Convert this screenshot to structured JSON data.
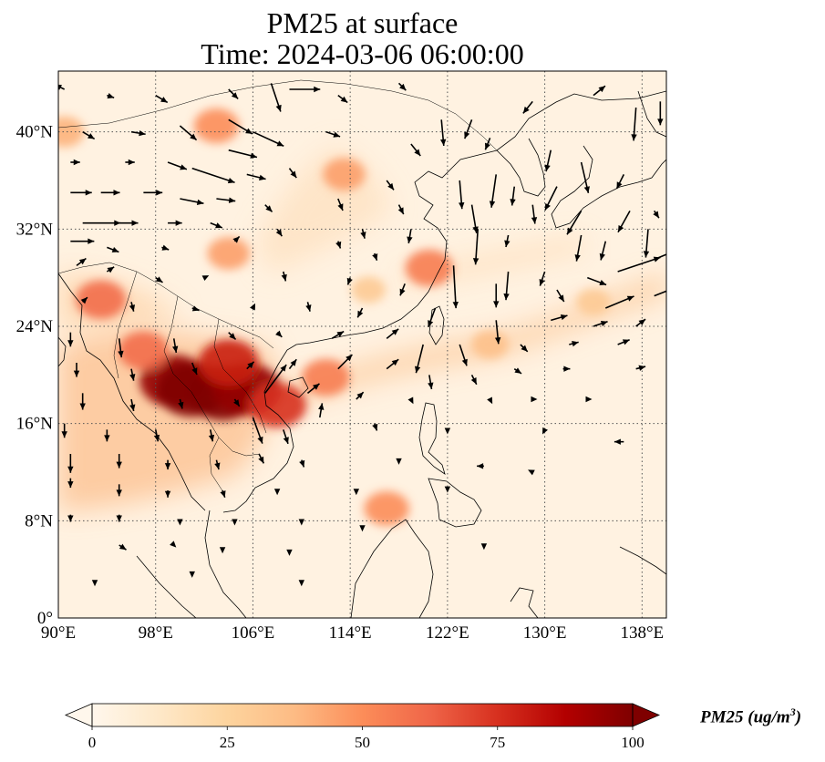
{
  "title_line1": "PM25 at surface",
  "title_line2": "Time: 2024-03-06 06:00:00",
  "map": {
    "lon_range": [
      90,
      140
    ],
    "lat_range": [
      0,
      45
    ],
    "lon_ticks": [
      {
        "v": 90,
        "label": "90°E"
      },
      {
        "v": 98,
        "label": "98°E"
      },
      {
        "v": 106,
        "label": "106°E"
      },
      {
        "v": 114,
        "label": "114°E"
      },
      {
        "v": 122,
        "label": "122°E"
      },
      {
        "v": 130,
        "label": "130°E"
      },
      {
        "v": 138,
        "label": "138°E"
      }
    ],
    "lat_ticks": [
      {
        "v": 0,
        "label": "0°"
      },
      {
        "v": 8,
        "label": "8°N"
      },
      {
        "v": 16,
        "label": "16°N"
      },
      {
        "v": 24,
        "label": "24°N"
      },
      {
        "v": 32,
        "label": "32°N"
      },
      {
        "v": 40,
        "label": "40°N"
      }
    ],
    "gridlines": "dotted"
  },
  "colorbar": {
    "label": "PM25 (ug/m",
    "label_sup": "3",
    "label_close": ")",
    "colormap": "OrRd",
    "range": [
      0,
      100
    ],
    "extend": "both",
    "ticks": [
      {
        "v": 0,
        "label": "0"
      },
      {
        "v": 25,
        "label": "25"
      },
      {
        "v": 50,
        "label": "50"
      },
      {
        "v": 75,
        "label": "75"
      },
      {
        "v": 100,
        "label": "100"
      }
    ],
    "colors": [
      "#fff7ec",
      "#fee8c8",
      "#fdd49e",
      "#fdbb84",
      "#fc8d59",
      "#ef6548",
      "#d7301f",
      "#b30000",
      "#7f0000"
    ]
  },
  "pollution_hotspots": [
    {
      "lon": 99.5,
      "lat": 19.5,
      "value": 95
    },
    {
      "lon": 101,
      "lat": 18.8,
      "value": 100
    },
    {
      "lon": 103.5,
      "lat": 18.5,
      "value": 100
    },
    {
      "lon": 105.5,
      "lat": 18.8,
      "value": 95
    },
    {
      "lon": 104,
      "lat": 21,
      "value": 80
    },
    {
      "lon": 108,
      "lat": 17.5,
      "value": 75
    },
    {
      "lon": 97,
      "lat": 22,
      "value": 60
    },
    {
      "lon": 93.5,
      "lat": 26.2,
      "value": 60
    },
    {
      "lon": 112,
      "lat": 19.8,
      "value": 55
    },
    {
      "lon": 117,
      "lat": 9,
      "value": 50
    },
    {
      "lon": 120.5,
      "lat": 28.8,
      "value": 55
    },
    {
      "lon": 113.5,
      "lat": 36.5,
      "value": 45
    },
    {
      "lon": 90.5,
      "lat": 40,
      "value": 40
    },
    {
      "lon": 104,
      "lat": 30,
      "value": 45
    },
    {
      "lon": 103,
      "lat": 40.5,
      "value": 50
    },
    {
      "lon": 125.5,
      "lat": 22.5,
      "value": 35
    },
    {
      "lon": 134,
      "lat": 26,
      "value": 30
    },
    {
      "lon": 115.5,
      "lat": 27,
      "value": 30
    }
  ],
  "wind_vectors": [
    {
      "lon": 90.5,
      "lat": 43.5,
      "u": -0.4,
      "v": 0.2
    },
    {
      "lon": 94,
      "lat": 43,
      "u": 0.3,
      "v": -0.1
    },
    {
      "lon": 98,
      "lat": 43,
      "u": 0.5,
      "v": -0.3
    },
    {
      "lon": 104,
      "lat": 43.5,
      "u": 0.4,
      "v": -0.4
    },
    {
      "lon": 107.5,
      "lat": 44,
      "u": 0.4,
      "v": -1.2
    },
    {
      "lon": 109,
      "lat": 43.5,
      "u": 1.3,
      "v": 0
    },
    {
      "lon": 113,
      "lat": 43,
      "u": 0.4,
      "v": -0.3
    },
    {
      "lon": 118,
      "lat": 44,
      "u": 0.3,
      "v": -0.3
    },
    {
      "lon": 121.5,
      "lat": 41,
      "u": 0.1,
      "v": -1.1
    },
    {
      "lon": 124,
      "lat": 41,
      "u": -0.3,
      "v": -0.8
    },
    {
      "lon": 129,
      "lat": 42.5,
      "u": -0.4,
      "v": -0.5
    },
    {
      "lon": 134,
      "lat": 43,
      "u": 0.5,
      "v": 0.4
    },
    {
      "lon": 137.5,
      "lat": 42,
      "u": -0.1,
      "v": -1.4
    },
    {
      "lon": 139.5,
      "lat": 42.5,
      "u": 0,
      "v": -1
    },
    {
      "lon": 92,
      "lat": 40,
      "u": 0.5,
      "v": -0.3
    },
    {
      "lon": 96,
      "lat": 40,
      "u": 0.6,
      "v": -0.1
    },
    {
      "lon": 100,
      "lat": 40.5,
      "u": 0.7,
      "v": -0.6
    },
    {
      "lon": 104,
      "lat": 41,
      "u": 1,
      "v": -0.6
    },
    {
      "lon": 106,
      "lat": 40,
      "u": 1.3,
      "v": -0.6
    },
    {
      "lon": 112,
      "lat": 40,
      "u": 0.6,
      "v": -0.2
    },
    {
      "lon": 119,
      "lat": 39,
      "u": 0.4,
      "v": -0.5
    },
    {
      "lon": 125.5,
      "lat": 39.5,
      "u": -0.2,
      "v": -0.5
    },
    {
      "lon": 130.5,
      "lat": 38.5,
      "u": -0.2,
      "v": -0.9
    },
    {
      "lon": 133,
      "lat": 37.5,
      "u": 0.3,
      "v": -1.3
    },
    {
      "lon": 91,
      "lat": 37.5,
      "u": 0.4,
      "v": 0
    },
    {
      "lon": 95.5,
      "lat": 37.5,
      "u": 0.4,
      "v": 0
    },
    {
      "lon": 99,
      "lat": 37.5,
      "u": 0.8,
      "v": -0.3
    },
    {
      "lon": 101,
      "lat": 37,
      "u": 1.8,
      "v": -0.6
    },
    {
      "lon": 104,
      "lat": 38.5,
      "u": 1.2,
      "v": -0.3
    },
    {
      "lon": 105.5,
      "lat": 36.5,
      "u": 0.8,
      "v": -0.2
    },
    {
      "lon": 109,
      "lat": 37,
      "u": 0.3,
      "v": -0.4
    },
    {
      "lon": 117,
      "lat": 36,
      "u": 0.3,
      "v": -0.4
    },
    {
      "lon": 123,
      "lat": 36,
      "u": 0.1,
      "v": -1.2
    },
    {
      "lon": 126,
      "lat": 36.5,
      "u": -0.2,
      "v": -1.4
    },
    {
      "lon": 127.5,
      "lat": 35.5,
      "u": -0.1,
      "v": -0.8
    },
    {
      "lon": 131,
      "lat": 35.5,
      "u": -0.5,
      "v": -1
    },
    {
      "lon": 136.5,
      "lat": 36.5,
      "u": -0.3,
      "v": -0.6
    },
    {
      "lon": 91,
      "lat": 35,
      "u": 0.9,
      "v": 0
    },
    {
      "lon": 93.5,
      "lat": 35,
      "u": 0.8,
      "v": 0
    },
    {
      "lon": 97,
      "lat": 35,
      "u": 0.8,
      "v": 0
    },
    {
      "lon": 100,
      "lat": 34.5,
      "u": 1,
      "v": -0.2
    },
    {
      "lon": 103,
      "lat": 34.5,
      "u": 0.8,
      "v": -0.1
    },
    {
      "lon": 107,
      "lat": 34,
      "u": 0.3,
      "v": -0.3
    },
    {
      "lon": 113,
      "lat": 34.5,
      "u": 0.2,
      "v": -0.5
    },
    {
      "lon": 118,
      "lat": 34,
      "u": 0.2,
      "v": -0.4
    },
    {
      "lon": 124,
      "lat": 34,
      "u": 0.2,
      "v": -1.2
    },
    {
      "lon": 129,
      "lat": 34,
      "u": 0.1,
      "v": -0.8
    },
    {
      "lon": 133,
      "lat": 33.5,
      "u": -0.6,
      "v": -1
    },
    {
      "lon": 137,
      "lat": 33.5,
      "u": -0.5,
      "v": -0.9
    },
    {
      "lon": 139,
      "lat": 33.5,
      "u": 0.2,
      "v": -0.3
    },
    {
      "lon": 92,
      "lat": 32.5,
      "u": 1.6,
      "v": 0
    },
    {
      "lon": 95,
      "lat": 32.5,
      "u": 0.8,
      "v": 0
    },
    {
      "lon": 99,
      "lat": 32.5,
      "u": 0.6,
      "v": 0
    },
    {
      "lon": 102.5,
      "lat": 32.5,
      "u": 0.5,
      "v": -0.2
    },
    {
      "lon": 108,
      "lat": 32,
      "u": 0.2,
      "v": -0.3
    },
    {
      "lon": 115,
      "lat": 32,
      "u": 0.1,
      "v": -0.4
    },
    {
      "lon": 119,
      "lat": 32,
      "u": -0.1,
      "v": -0.6
    },
    {
      "lon": 124.5,
      "lat": 32,
      "u": -0.1,
      "v": -1.5
    },
    {
      "lon": 127,
      "lat": 31.5,
      "u": -0.1,
      "v": -0.5
    },
    {
      "lon": 133,
      "lat": 31.5,
      "u": -0.2,
      "v": -1.1
    },
    {
      "lon": 135,
      "lat": 31,
      "u": -0.2,
      "v": -0.8
    },
    {
      "lon": 138.5,
      "lat": 32,
      "u": -0.1,
      "v": -1.2
    },
    {
      "lon": 91,
      "lat": 31,
      "u": 1,
      "v": 0
    },
    {
      "lon": 94,
      "lat": 30.5,
      "u": 0.5,
      "v": -0.2
    },
    {
      "lon": 98.5,
      "lat": 30.5,
      "u": 0.3,
      "v": -0.1
    },
    {
      "lon": 104.5,
      "lat": 31,
      "u": 0.2,
      "v": 0.2
    },
    {
      "lon": 113,
      "lat": 31,
      "u": 0.1,
      "v": -0.3
    },
    {
      "lon": 116,
      "lat": 30,
      "u": 0.1,
      "v": -0.3
    },
    {
      "lon": 122.5,
      "lat": 29,
      "u": 0.1,
      "v": -1.8
    },
    {
      "lon": 127,
      "lat": 28.5,
      "u": -0.1,
      "v": -1.2
    },
    {
      "lon": 130,
      "lat": 28.5,
      "u": -0.2,
      "v": -0.6
    },
    {
      "lon": 133.5,
      "lat": 28,
      "u": 0.8,
      "v": -0.3
    },
    {
      "lon": 136,
      "lat": 28.5,
      "u": 1.8,
      "v": 0.6
    },
    {
      "lon": 139,
      "lat": 29.5,
      "u": 1.2,
      "v": 0.5
    },
    {
      "lon": 91.5,
      "lat": 29,
      "u": 0.4,
      "v": 0.3
    },
    {
      "lon": 94,
      "lat": 28.5,
      "u": 0.3,
      "v": 0.2
    },
    {
      "lon": 98,
      "lat": 28,
      "u": 0.3,
      "v": -0.2
    },
    {
      "lon": 102,
      "lat": 28,
      "u": 0.2,
      "v": 0.1
    },
    {
      "lon": 108.5,
      "lat": 28.5,
      "u": 0.1,
      "v": -0.4
    },
    {
      "lon": 114,
      "lat": 28,
      "u": -0.1,
      "v": -0.3
    },
    {
      "lon": 118.5,
      "lat": 27.5,
      "u": -0.2,
      "v": -0.5
    },
    {
      "lon": 126,
      "lat": 27.5,
      "u": 0,
      "v": -1
    },
    {
      "lon": 131,
      "lat": 27,
      "u": 0.3,
      "v": -0.5
    },
    {
      "lon": 135,
      "lat": 25.5,
      "u": 1.2,
      "v": 0.5
    },
    {
      "lon": 139,
      "lat": 26.5,
      "u": 1.5,
      "v": 0.6
    },
    {
      "lon": 92,
      "lat": 26,
      "u": 0.2,
      "v": 0.2
    },
    {
      "lon": 96,
      "lat": 26,
      "u": 0.1,
      "v": -0.4
    },
    {
      "lon": 101,
      "lat": 25.5,
      "u": 0.3,
      "v": -0.1
    },
    {
      "lon": 106,
      "lat": 25.5,
      "u": 0.1,
      "v": 0.2
    },
    {
      "lon": 110.5,
      "lat": 26,
      "u": 0.1,
      "v": -0.4
    },
    {
      "lon": 115,
      "lat": 25.5,
      "u": -0.2,
      "v": -0.4
    },
    {
      "lon": 121,
      "lat": 25.5,
      "u": -0.3,
      "v": -0.8
    },
    {
      "lon": 126,
      "lat": 24.5,
      "u": 0.1,
      "v": -1
    },
    {
      "lon": 130.5,
      "lat": 24.5,
      "u": 0.7,
      "v": 0.2
    },
    {
      "lon": 134,
      "lat": 24,
      "u": 0.6,
      "v": 0.2
    },
    {
      "lon": 137.5,
      "lat": 24,
      "u": 0.4,
      "v": 0.3
    },
    {
      "lon": 91,
      "lat": 23.5,
      "u": 0,
      "v": -0.6
    },
    {
      "lon": 95,
      "lat": 23,
      "u": 0.1,
      "v": -0.8
    },
    {
      "lon": 99.5,
      "lat": 23,
      "u": 0.1,
      "v": -0.6
    },
    {
      "lon": 104,
      "lat": 23.5,
      "u": 0.3,
      "v": -0.3
    },
    {
      "lon": 108,
      "lat": 23.5,
      "u": 0.2,
      "v": -0.2
    },
    {
      "lon": 112.5,
      "lat": 23,
      "u": 0.5,
      "v": 0.3
    },
    {
      "lon": 117,
      "lat": 23,
      "u": 0.5,
      "v": 0.4
    },
    {
      "lon": 120,
      "lat": 22.5,
      "u": -0.3,
      "v": -1.2
    },
    {
      "lon": 123,
      "lat": 22.5,
      "u": 0.3,
      "v": -0.9
    },
    {
      "lon": 128,
      "lat": 22.5,
      "u": 0.3,
      "v": -0.3
    },
    {
      "lon": 132,
      "lat": 22.5,
      "u": 0.4,
      "v": 0.1
    },
    {
      "lon": 136,
      "lat": 22.5,
      "u": 0.5,
      "v": 0.2
    },
    {
      "lon": 91.5,
      "lat": 21,
      "u": 0,
      "v": -0.6
    },
    {
      "lon": 96,
      "lat": 20.5,
      "u": 0.1,
      "v": -0.5
    },
    {
      "lon": 101,
      "lat": 21,
      "u": 0.2,
      "v": -0.5
    },
    {
      "lon": 105.5,
      "lat": 20.5,
      "u": 0.3,
      "v": 0.3
    },
    {
      "lon": 109,
      "lat": 20.5,
      "u": 0.3,
      "v": 0.4
    },
    {
      "lon": 113,
      "lat": 20.5,
      "u": 0.6,
      "v": 0.6
    },
    {
      "lon": 117,
      "lat": 20.5,
      "u": 0.5,
      "v": 0.4
    },
    {
      "lon": 120.5,
      "lat": 20,
      "u": 0.1,
      "v": -0.6
    },
    {
      "lon": 124,
      "lat": 20,
      "u": 0.2,
      "v": -0.4
    },
    {
      "lon": 127.5,
      "lat": 20.5,
      "u": 0.3,
      "v": -0.2
    },
    {
      "lon": 131.5,
      "lat": 20.5,
      "u": 0.3,
      "v": 0
    },
    {
      "lon": 137.5,
      "lat": 20.5,
      "u": 0.4,
      "v": 0.1
    },
    {
      "lon": 92,
      "lat": 18.5,
      "u": 0,
      "v": -0.7
    },
    {
      "lon": 96,
      "lat": 18,
      "u": 0.1,
      "v": -0.5
    },
    {
      "lon": 100,
      "lat": 18,
      "u": 0.1,
      "v": -0.4
    },
    {
      "lon": 104.5,
      "lat": 18,
      "u": 0.2,
      "v": -0.3
    },
    {
      "lon": 107,
      "lat": 18.5,
      "u": 0.9,
      "v": 1.2
    },
    {
      "lon": 110.5,
      "lat": 18.5,
      "u": 0.5,
      "v": 0.4
    },
    {
      "lon": 114.5,
      "lat": 18,
      "u": 0.3,
      "v": 0.3
    },
    {
      "lon": 119,
      "lat": 18,
      "u": 0.1,
      "v": -0.2
    },
    {
      "lon": 125.5,
      "lat": 18,
      "u": 0.1,
      "v": -0.2
    },
    {
      "lon": 129,
      "lat": 18,
      "u": 0.2,
      "v": 0
    },
    {
      "lon": 133.5,
      "lat": 18,
      "u": 0.2,
      "v": 0
    },
    {
      "lon": 90.5,
      "lat": 16,
      "u": 0,
      "v": -0.6
    },
    {
      "lon": 94,
      "lat": 15.5,
      "u": 0,
      "v": -0.5
    },
    {
      "lon": 98,
      "lat": 15.5,
      "u": 0.1,
      "v": -0.5
    },
    {
      "lon": 102.5,
      "lat": 15.5,
      "u": 0.1,
      "v": -0.5
    },
    {
      "lon": 106,
      "lat": 16.5,
      "u": 0.4,
      "v": -1.1
    },
    {
      "lon": 108.5,
      "lat": 15.5,
      "u": 0.2,
      "v": -0.6
    },
    {
      "lon": 111.5,
      "lat": 16.5,
      "u": 0.1,
      "v": 0.6
    },
    {
      "lon": 116,
      "lat": 16,
      "u": 0.1,
      "v": -0.3
    },
    {
      "lon": 122,
      "lat": 15.5,
      "u": 0,
      "v": -0.2
    },
    {
      "lon": 130,
      "lat": 15.5,
      "u": -0.1,
      "v": -0.2
    },
    {
      "lon": 136.5,
      "lat": 14.5,
      "u": -0.4,
      "v": 0
    },
    {
      "lon": 91,
      "lat": 13.5,
      "u": 0,
      "v": -0.8
    },
    {
      "lon": 95,
      "lat": 13.5,
      "u": 0,
      "v": -0.6
    },
    {
      "lon": 99,
      "lat": 13,
      "u": 0,
      "v": -0.4
    },
    {
      "lon": 103,
      "lat": 13,
      "u": 0.1,
      "v": -0.4
    },
    {
      "lon": 106.5,
      "lat": 13.5,
      "u": 0.2,
      "v": -0.4
    },
    {
      "lon": 110,
      "lat": 13,
      "u": 0.1,
      "v": -0.3
    },
    {
      "lon": 118,
      "lat": 13,
      "u": 0,
      "v": -0.2
    },
    {
      "lon": 125,
      "lat": 12.5,
      "u": -0.3,
      "v": 0
    },
    {
      "lon": 129,
      "lat": 12,
      "u": -0.2,
      "v": 0.1
    },
    {
      "lon": 91,
      "lat": 11.5,
      "u": 0,
      "v": -0.4
    },
    {
      "lon": 95,
      "lat": 11,
      "u": 0,
      "v": -0.5
    },
    {
      "lon": 99,
      "lat": 10.5,
      "u": 0,
      "v": -0.3
    },
    {
      "lon": 103.5,
      "lat": 10.5,
      "u": 0.1,
      "v": -0.3
    },
    {
      "lon": 108,
      "lat": 10.5,
      "u": 0,
      "v": -0.2
    },
    {
      "lon": 114.5,
      "lat": 10.5,
      "u": 0,
      "v": -0.2
    },
    {
      "lon": 122,
      "lat": 10.5,
      "u": 0,
      "v": -0.1
    },
    {
      "lon": 91,
      "lat": 8.5,
      "u": 0,
      "v": -0.3
    },
    {
      "lon": 95,
      "lat": 8.5,
      "u": 0,
      "v": -0.3
    },
    {
      "lon": 100,
      "lat": 8,
      "u": 0,
      "v": -0.2
    },
    {
      "lon": 104.5,
      "lat": 8,
      "u": 0,
      "v": -0.2
    },
    {
      "lon": 110,
      "lat": 8,
      "u": 0,
      "v": -0.2
    },
    {
      "lon": 115,
      "lat": 7.5,
      "u": 0,
      "v": -0.2
    },
    {
      "lon": 95,
      "lat": 6,
      "u": 0.3,
      "v": -0.2
    },
    {
      "lon": 99.5,
      "lat": 6,
      "u": 0.1,
      "v": -0.1
    },
    {
      "lon": 103.5,
      "lat": 5.5,
      "u": 0,
      "v": -0.1
    },
    {
      "lon": 109,
      "lat": 5.5,
      "u": 0,
      "v": -0.2
    },
    {
      "lon": 125,
      "lat": 6,
      "u": 0,
      "v": -0.2
    },
    {
      "lon": 93,
      "lat": 3,
      "u": 0,
      "v": -0.2
    },
    {
      "lon": 101,
      "lat": 3.5,
      "u": 0,
      "v": -0.1
    },
    {
      "lon": 110,
      "lat": 3,
      "u": 0,
      "v": -0.2
    }
  ]
}
